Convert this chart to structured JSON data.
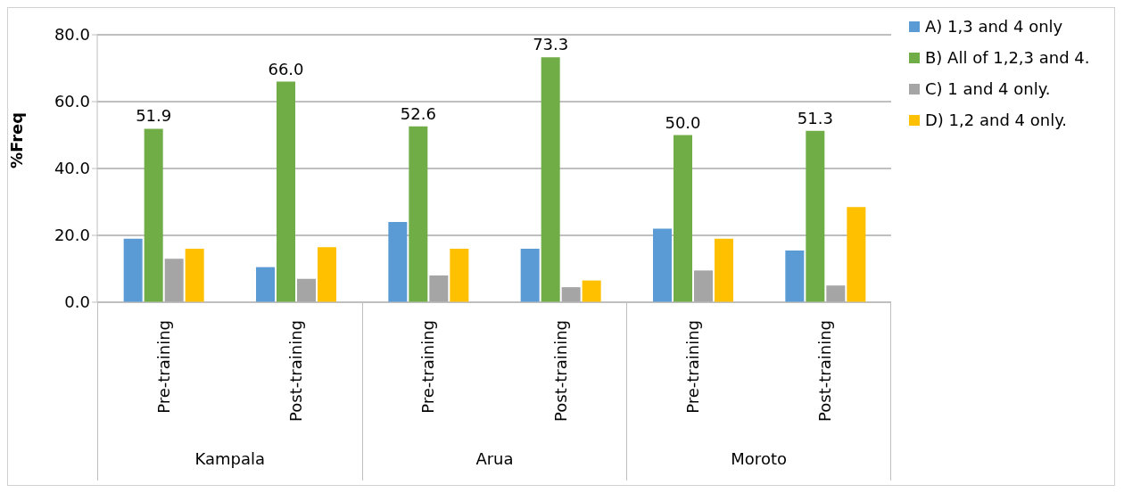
{
  "chart_data": {
    "type": "bar",
    "ylabel": "%Freq",
    "categories": [
      "Pre-training",
      "Post-training",
      "Pre-training",
      "Post-training",
      "Pre-training",
      "Post-training"
    ],
    "series": [
      {
        "name": "A) 1,3 and 4 only",
        "color": "#5b9bd5",
        "values": [
          19,
          10.5,
          24,
          16,
          22,
          15.5
        ]
      },
      {
        "name": "B) All of 1,2,3 and 4.",
        "color": "#70ad47",
        "values": [
          51.9,
          66.0,
          52.6,
          73.3,
          50.0,
          51.3
        ],
        "value_labels": [
          "51.9",
          "66.0",
          "52.6",
          "73.3",
          "50.0",
          "51.3"
        ]
      },
      {
        "name": "C) 1 and 4 only.",
        "color": "#a5a5a5",
        "values": [
          13,
          7,
          8,
          4.5,
          9.5,
          5
        ]
      },
      {
        "name": "D) 1,2 and 4 only.",
        "color": "#ffc000",
        "values": [
          16,
          16.5,
          16,
          6.5,
          19,
          28.5
        ]
      }
    ],
    "annotations": [
      "Kampala",
      "Arua",
      "Moroto"
    ],
    "ylim": [
      0,
      80
    ],
    "yticks": [
      {
        "value": 0,
        "label": "0.0"
      },
      {
        "value": 20,
        "label": "20.0"
      },
      {
        "value": 40,
        "label": "40.0"
      },
      {
        "value": 60,
        "label": "60.0"
      },
      {
        "value": 80,
        "label": "80.0"
      }
    ],
    "grid": "y",
    "legend": "right"
  }
}
